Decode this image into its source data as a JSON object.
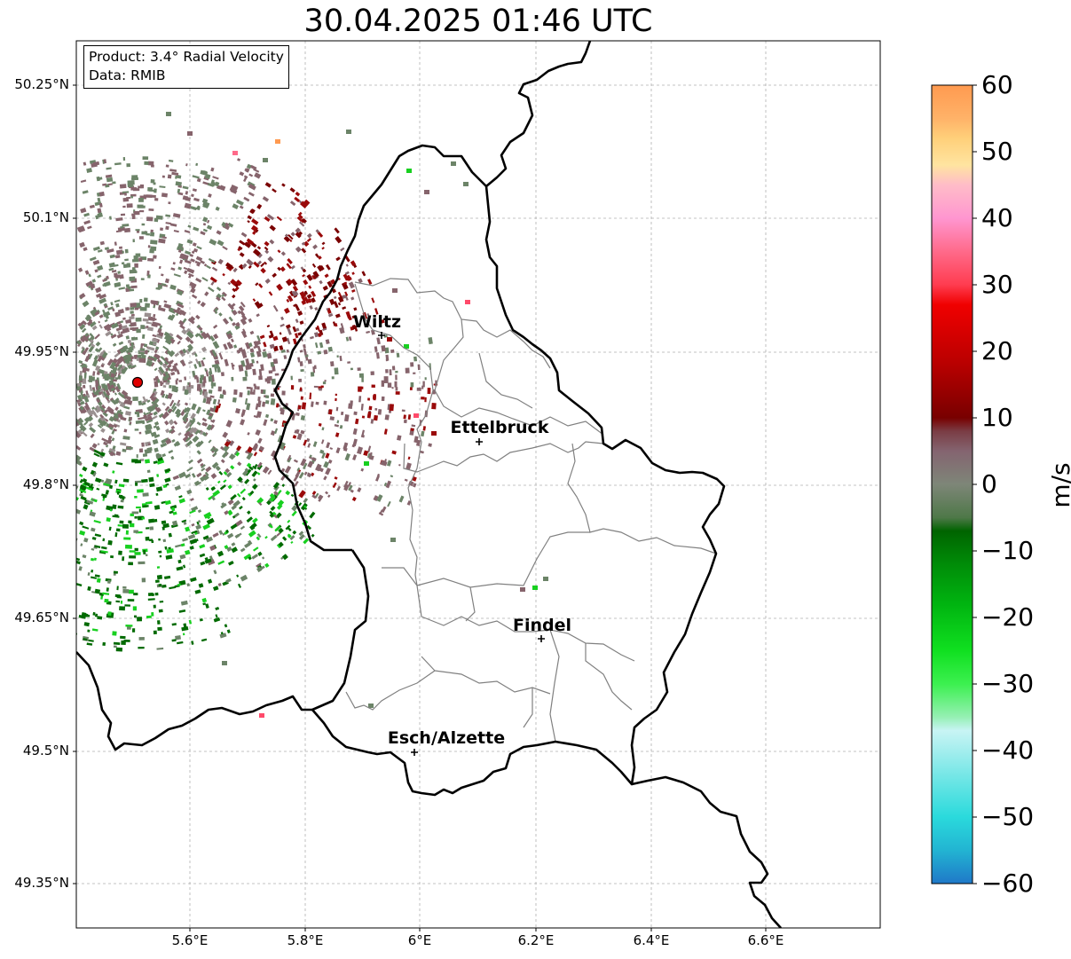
{
  "title": "30.04.2025 01:46 UTC",
  "info": {
    "product": "Product: 3.4° Radial Velocity",
    "data_source": "Data: RMIB"
  },
  "axes": {
    "x_ticks": [
      "5.6°E",
      "5.8°E",
      "6°E",
      "6.2°E",
      "6.4°E",
      "6.6°E"
    ],
    "y_ticks": [
      "50.25°N",
      "50.1°N",
      "49.95°N",
      "49.8°N",
      "49.65°N",
      "49.5°N",
      "49.35°N"
    ],
    "lon_range": [
      5.4,
      6.8
    ],
    "lat_range": [
      49.3,
      50.3
    ]
  },
  "cities": [
    {
      "name": "Wiltz",
      "lon": 5.935,
      "lat": 49.967
    },
    {
      "name": "Ettelbruck",
      "lon": 6.102,
      "lat": 49.849
    },
    {
      "name": "Findel",
      "lon": 6.21,
      "lat": 49.627
    },
    {
      "name": "Esch/Alzette",
      "lon": 5.983,
      "lat": 49.498
    }
  ],
  "radar_site": {
    "lon": 5.506,
    "lat": 49.914,
    "color": "#e00000"
  },
  "colorbar": {
    "label": "m/s",
    "ticks": [
      "60",
      "50",
      "40",
      "30",
      "20",
      "10",
      "0",
      "−10",
      "−20",
      "−30",
      "−40",
      "−50",
      "−60"
    ],
    "range": [
      -60,
      60
    ],
    "stops": [
      {
        "v": -60,
        "c": "#1f78c8"
      },
      {
        "v": -55,
        "c": "#22b4d2"
      },
      {
        "v": -50,
        "c": "#2adadc"
      },
      {
        "v": -45,
        "c": "#66e4e4"
      },
      {
        "v": -40,
        "c": "#a4eeee"
      },
      {
        "v": -37,
        "c": "#c8f4f4"
      },
      {
        "v": -35,
        "c": "#96f0b4"
      },
      {
        "v": -30,
        "c": "#3cf050"
      },
      {
        "v": -25,
        "c": "#10e020"
      },
      {
        "v": -18,
        "c": "#00b410"
      },
      {
        "v": -12,
        "c": "#008c08"
      },
      {
        "v": -7,
        "c": "#006400"
      },
      {
        "v": -5,
        "c": "#4e7848"
      },
      {
        "v": 0,
        "c": "#7e8678"
      },
      {
        "v": 5,
        "c": "#846470"
      },
      {
        "v": 8,
        "c": "#7a3c44"
      },
      {
        "v": 10,
        "c": "#780000"
      },
      {
        "v": 18,
        "c": "#b80000"
      },
      {
        "v": 27,
        "c": "#f00000"
      },
      {
        "v": 30,
        "c": "#ff3c50"
      },
      {
        "v": 35,
        "c": "#ff6a8a"
      },
      {
        "v": 40,
        "c": "#ff96d0"
      },
      {
        "v": 45,
        "c": "#ffbcc8"
      },
      {
        "v": 48,
        "c": "#ffe4a0"
      },
      {
        "v": 52,
        "c": "#ffd07a"
      },
      {
        "v": 55,
        "c": "#ffb268"
      },
      {
        "v": 60,
        "c": "#ff9a50"
      }
    ]
  },
  "colors": {
    "grid": "#b0b0b0",
    "border": "#000000",
    "districts": "#808080",
    "far_red": "#7a0000",
    "mid_red": "#9a0a0a",
    "pinkish": "#86646c",
    "grey_green": "#6c8468",
    "green": "#006a00",
    "bright_green": "#18d020"
  }
}
